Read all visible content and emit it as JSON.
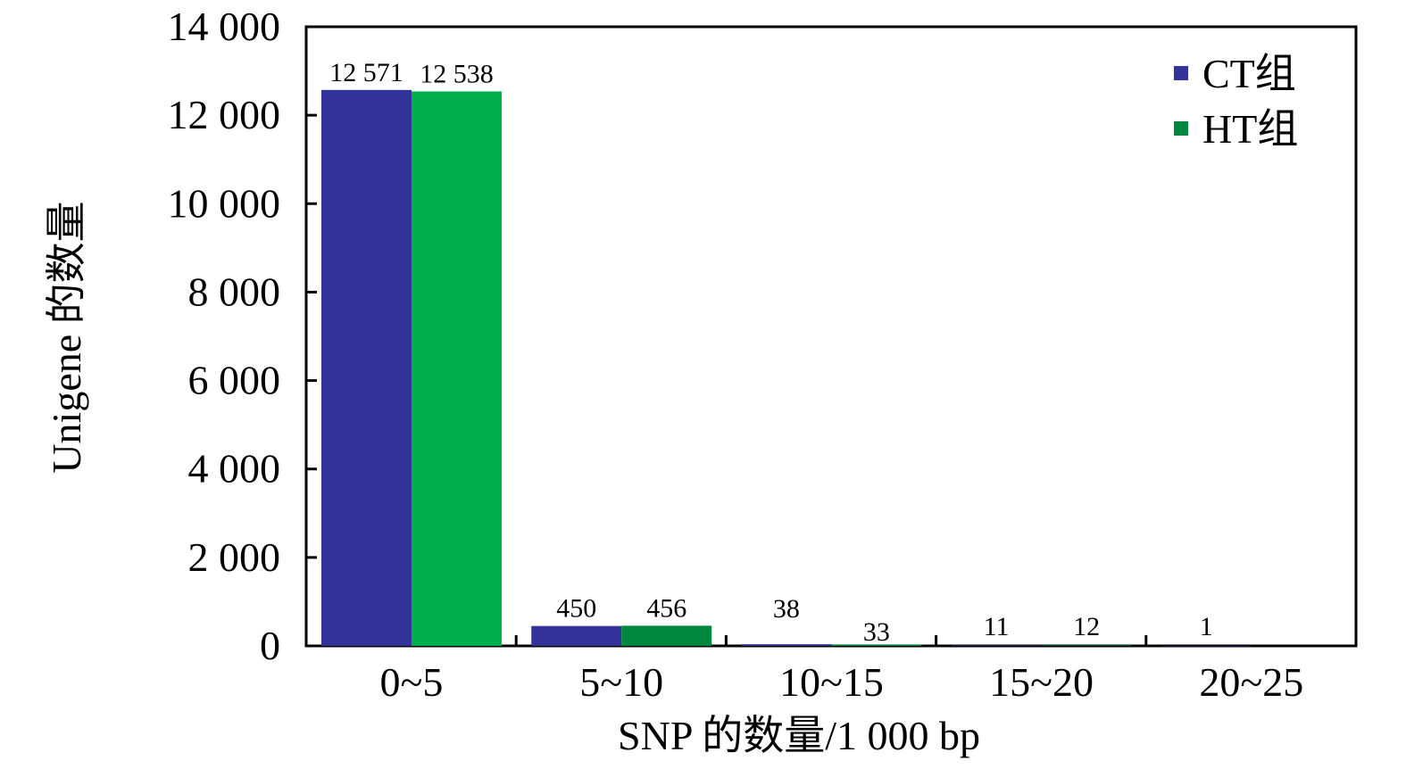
{
  "chart_data": {
    "type": "bar",
    "categories": [
      "0~5",
      "5~10",
      "10~15",
      "15~20",
      "20~25"
    ],
    "series": [
      {
        "name": "CT组",
        "color": "#333399",
        "values": [
          12571,
          450,
          38,
          11,
          1
        ],
        "labels": [
          "12 571",
          "450",
          "38",
          "11",
          "1"
        ]
      },
      {
        "name": "HT组",
        "color_bar0": "#00b04f",
        "color": "#00873f",
        "values": [
          12538,
          456,
          33,
          12,
          null
        ],
        "labels": [
          "12 538",
          "456",
          "33",
          "12",
          ""
        ]
      }
    ],
    "xlabel": "SNP 的数量/1 000 bp",
    "ylabel": "Unigene 的数量",
    "ylim": [
      0,
      14000
    ],
    "yticks": [
      0,
      2000,
      4000,
      6000,
      8000,
      10000,
      12000,
      14000
    ],
    "ytick_labels": [
      "0",
      "2 000",
      "4 000",
      "6 000",
      "8 000",
      "10 000",
      "12 000",
      "14 000"
    ],
    "legend": "top-right",
    "grid": false
  }
}
